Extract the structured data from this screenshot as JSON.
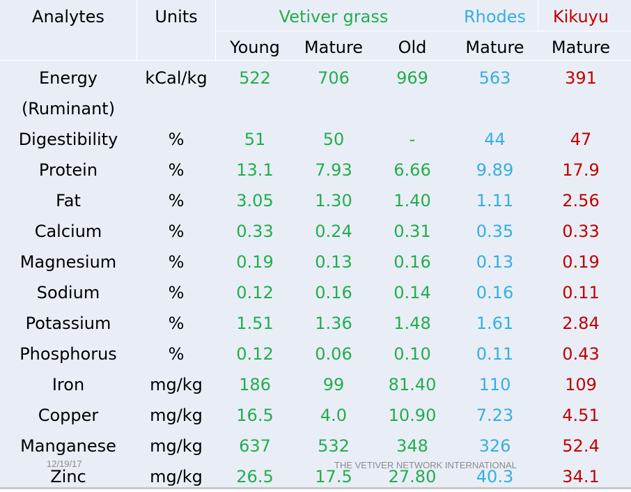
{
  "header": {
    "analytes": "Analytes",
    "units": "Units",
    "vetiver": "Vetiver grass",
    "rhodes": "Rhodes",
    "kikuyu": "Kikuyu",
    "sub": [
      "Young",
      "Mature",
      "Old",
      "Mature",
      "Mature"
    ]
  },
  "energy": {
    "name_line1": "Energy",
    "name_line2": "(Ruminant)",
    "unit": "kCal/kg",
    "values": [
      "522",
      "706",
      "969",
      "563",
      "391"
    ]
  },
  "rows": [
    {
      "name": "Digestibility",
      "unit": "%",
      "values": [
        "51",
        "50",
        "-",
        "44",
        "47"
      ]
    },
    {
      "name": "Protein",
      "unit": "%",
      "values": [
        "13.1",
        "7.93",
        "6.66",
        "9.89",
        "17.9"
      ]
    },
    {
      "name": "Fat",
      "unit": "%",
      "values": [
        "3.05",
        "1.30",
        "1.40",
        "1.11",
        "2.56"
      ]
    },
    {
      "name": "Calcium",
      "unit": "%",
      "values": [
        "0.33",
        "0.24",
        "0.31",
        "0.35",
        "0.33"
      ]
    },
    {
      "name": "Magnesium",
      "unit": "%",
      "values": [
        "0.19",
        "0.13",
        "0.16",
        "0.13",
        "0.19"
      ]
    },
    {
      "name": "Sodium",
      "unit": "%",
      "values": [
        "0.12",
        "0.16",
        "0.14",
        "0.16",
        "0.11"
      ]
    },
    {
      "name": "Potassium",
      "unit": "%",
      "values": [
        "1.51",
        "1.36",
        "1.48",
        "1.61",
        "2.84"
      ]
    },
    {
      "name": "Phosphorus",
      "unit": "%",
      "values": [
        "0.12",
        "0.06",
        "0.10",
        "0.11",
        "0.43"
      ]
    },
    {
      "name": "Iron",
      "unit": "mg/kg",
      "values": [
        "186",
        "99",
        "81.40",
        "110",
        "109"
      ]
    },
    {
      "name": "Copper",
      "unit": "mg/kg",
      "values": [
        "16.5",
        "4.0",
        "10.90",
        "7.23",
        "4.51"
      ]
    },
    {
      "name": "Manganese",
      "unit": "mg/kg",
      "values": [
        "637",
        "532",
        "348",
        "326",
        "52.4"
      ]
    },
    {
      "name": "Zinc",
      "unit": "mg/kg",
      "values": [
        "26.5",
        "17.5",
        "27.80",
        "40.3",
        "34.1"
      ]
    }
  ],
  "footer": {
    "date": "12/19/17",
    "org": "THE VETIVER NETWORK INTERNATIONAL"
  },
  "colors": {
    "vetiver": "#22ad4e",
    "rhodes": "#35aee4",
    "kikuyu": "#c00000",
    "background": "#e9eef6"
  }
}
